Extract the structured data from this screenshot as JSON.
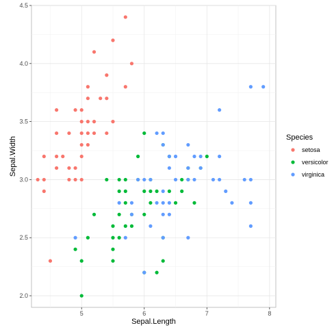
{
  "chart_data": {
    "type": "scatter",
    "xlabel": "Sepal.Length",
    "ylabel": "Sepal.Width",
    "xlim": [
      4.2,
      8.1
    ],
    "ylim": [
      1.9,
      4.5
    ],
    "x_ticks": [
      5,
      6,
      7,
      8
    ],
    "y_ticks": [
      2.0,
      2.5,
      3.0,
      3.5,
      4.0,
      4.5
    ],
    "x_tick_labels": [
      "5",
      "6",
      "7",
      "8"
    ],
    "y_tick_labels": [
      "2.0",
      "2.5",
      "3.0",
      "3.5",
      "4.0",
      "4.5"
    ],
    "grid": true,
    "legend": {
      "title": "Species",
      "position": "right"
    },
    "series": [
      {
        "name": "setosa",
        "color": "#F8766D",
        "points": [
          [
            4.3,
            3.0
          ],
          [
            4.4,
            2.9
          ],
          [
            4.4,
            3.0
          ],
          [
            4.4,
            3.2
          ],
          [
            4.5,
            2.3
          ],
          [
            4.6,
            3.1
          ],
          [
            4.6,
            3.2
          ],
          [
            4.6,
            3.4
          ],
          [
            4.6,
            3.6
          ],
          [
            4.7,
            3.2
          ],
          [
            4.8,
            3.0
          ],
          [
            4.8,
            3.1
          ],
          [
            4.8,
            3.4
          ],
          [
            4.9,
            3.0
          ],
          [
            4.9,
            3.1
          ],
          [
            4.9,
            3.6
          ],
          [
            5.0,
            3.0
          ],
          [
            5.0,
            3.2
          ],
          [
            5.0,
            3.3
          ],
          [
            5.0,
            3.4
          ],
          [
            5.0,
            3.5
          ],
          [
            5.0,
            3.6
          ],
          [
            5.1,
            3.3
          ],
          [
            5.1,
            3.4
          ],
          [
            5.1,
            3.5
          ],
          [
            5.1,
            3.7
          ],
          [
            5.1,
            3.8
          ],
          [
            5.2,
            3.4
          ],
          [
            5.2,
            3.5
          ],
          [
            5.2,
            4.1
          ],
          [
            5.3,
            3.7
          ],
          [
            5.4,
            3.4
          ],
          [
            5.4,
            3.7
          ],
          [
            5.4,
            3.9
          ],
          [
            5.5,
            3.5
          ],
          [
            5.5,
            4.2
          ],
          [
            5.7,
            3.8
          ],
          [
            5.7,
            4.4
          ],
          [
            5.8,
            4.0
          ]
        ]
      },
      {
        "name": "versicolor",
        "color": "#00BA38",
        "points": [
          [
            4.9,
            2.4
          ],
          [
            5.0,
            2.0
          ],
          [
            5.0,
            2.3
          ],
          [
            5.1,
            2.5
          ],
          [
            5.2,
            2.7
          ],
          [
            5.4,
            3.0
          ],
          [
            5.5,
            2.3
          ],
          [
            5.5,
            2.4
          ],
          [
            5.5,
            2.5
          ],
          [
            5.5,
            2.6
          ],
          [
            5.6,
            2.5
          ],
          [
            5.6,
            2.7
          ],
          [
            5.6,
            2.9
          ],
          [
            5.6,
            3.0
          ],
          [
            5.7,
            2.6
          ],
          [
            5.7,
            2.8
          ],
          [
            5.7,
            2.9
          ],
          [
            5.7,
            3.0
          ],
          [
            5.8,
            2.6
          ],
          [
            5.8,
            2.7
          ],
          [
            5.9,
            3.0
          ],
          [
            5.9,
            3.2
          ],
          [
            6.0,
            2.2
          ],
          [
            6.0,
            2.7
          ],
          [
            6.0,
            2.9
          ],
          [
            6.0,
            3.4
          ],
          [
            6.1,
            2.8
          ],
          [
            6.1,
            2.9
          ],
          [
            6.1,
            3.0
          ],
          [
            6.2,
            2.2
          ],
          [
            6.2,
            2.9
          ],
          [
            6.3,
            2.3
          ],
          [
            6.3,
            2.5
          ],
          [
            6.3,
            3.3
          ],
          [
            6.4,
            2.9
          ],
          [
            6.4,
            3.2
          ],
          [
            6.5,
            2.8
          ],
          [
            6.6,
            2.9
          ],
          [
            6.6,
            3.0
          ],
          [
            6.7,
            3.0
          ],
          [
            6.7,
            3.1
          ],
          [
            6.8,
            2.8
          ],
          [
            6.9,
            3.1
          ],
          [
            7.0,
            3.2
          ]
        ]
      },
      {
        "name": "virginica",
        "color": "#619CFF",
        "points": [
          [
            4.9,
            2.5
          ],
          [
            5.6,
            2.8
          ],
          [
            5.7,
            2.5
          ],
          [
            5.8,
            2.7
          ],
          [
            5.8,
            2.8
          ],
          [
            5.9,
            3.0
          ],
          [
            6.0,
            2.2
          ],
          [
            6.0,
            3.0
          ],
          [
            6.1,
            2.6
          ],
          [
            6.1,
            3.0
          ],
          [
            6.2,
            2.8
          ],
          [
            6.2,
            3.4
          ],
          [
            6.3,
            2.5
          ],
          [
            6.3,
            2.7
          ],
          [
            6.3,
            2.8
          ],
          [
            6.3,
            2.9
          ],
          [
            6.3,
            3.3
          ],
          [
            6.3,
            3.4
          ],
          [
            6.4,
            2.7
          ],
          [
            6.4,
            2.8
          ],
          [
            6.4,
            3.1
          ],
          [
            6.4,
            3.2
          ],
          [
            6.5,
            3.0
          ],
          [
            6.5,
            3.2
          ],
          [
            6.7,
            2.5
          ],
          [
            6.7,
            3.0
          ],
          [
            6.7,
            3.1
          ],
          [
            6.7,
            3.3
          ],
          [
            6.8,
            3.0
          ],
          [
            6.8,
            3.2
          ],
          [
            6.9,
            3.1
          ],
          [
            6.9,
            3.2
          ],
          [
            7.1,
            3.0
          ],
          [
            7.2,
            3.0
          ],
          [
            7.2,
            3.2
          ],
          [
            7.2,
            3.6
          ],
          [
            7.3,
            2.9
          ],
          [
            7.4,
            2.8
          ],
          [
            7.6,
            3.0
          ],
          [
            7.7,
            2.6
          ],
          [
            7.7,
            2.8
          ],
          [
            7.7,
            3.0
          ],
          [
            7.7,
            3.8
          ],
          [
            7.9,
            3.8
          ]
        ]
      }
    ]
  }
}
